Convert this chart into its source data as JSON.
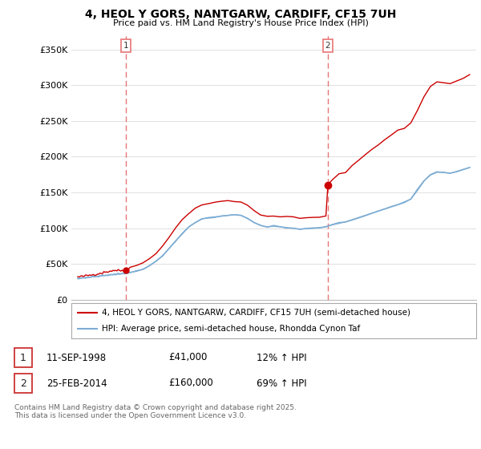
{
  "title": "4, HEOL Y GORS, NANTGARW, CARDIFF, CF15 7UH",
  "subtitle": "Price paid vs. HM Land Registry's House Price Index (HPI)",
  "legend_line1": "4, HEOL Y GORS, NANTGARW, CARDIFF, CF15 7UH (semi-detached house)",
  "legend_line2": "HPI: Average price, semi-detached house, Rhondda Cynon Taf",
  "footer": "Contains HM Land Registry data © Crown copyright and database right 2025.\nThis data is licensed under the Open Government Licence v3.0.",
  "sale1_date": "11-SEP-1998",
  "sale1_price": "£41,000",
  "sale1_hpi": "12% ↑ HPI",
  "sale2_date": "25-FEB-2014",
  "sale2_price": "£160,000",
  "sale2_hpi": "69% ↑ HPI",
  "price_line_color": "#cc0000",
  "hpi_line_color": "#7dadd4",
  "vline_color": "#e87575",
  "sale1_vline_x": 1998.7,
  "sale2_vline_x": 2014.15,
  "sale1_dot_price": 41000,
  "sale2_dot_price": 160000,
  "ylim": [
    0,
    370000
  ],
  "xlim": [
    1994.5,
    2025.5
  ],
  "yticks": [
    0,
    50000,
    100000,
    150000,
    200000,
    250000,
    300000,
    350000
  ],
  "ytick_labels": [
    "£0",
    "£50K",
    "£100K",
    "£150K",
    "£200K",
    "£250K",
    "£300K",
    "£350K"
  ],
  "background_color": "#ffffff",
  "grid_color": "#e0e0e0",
  "years_hpi": [
    1995.0,
    1995.1,
    1995.2,
    1995.3,
    1995.4,
    1995.5,
    1995.6,
    1995.7,
    1995.8,
    1995.9,
    1996.0,
    1996.1,
    1996.2,
    1996.3,
    1996.4,
    1996.5,
    1996.6,
    1996.7,
    1996.8,
    1996.9,
    1997.0,
    1997.1,
    1997.2,
    1997.3,
    1997.4,
    1997.5,
    1997.6,
    1997.7,
    1997.8,
    1997.9,
    1998.0,
    1998.1,
    1998.2,
    1998.3,
    1998.4,
    1998.5,
    1998.6,
    1998.7,
    1998.8,
    1998.9,
    1999.0,
    1999.5,
    2000.0,
    2000.5,
    2001.0,
    2001.5,
    2002.0,
    2002.5,
    2003.0,
    2003.5,
    2004.0,
    2004.5,
    2005.0,
    2005.5,
    2006.0,
    2006.5,
    2007.0,
    2007.5,
    2008.0,
    2008.5,
    2009.0,
    2009.5,
    2010.0,
    2010.5,
    2011.0,
    2011.5,
    2012.0,
    2012.5,
    2013.0,
    2013.5,
    2014.0,
    2014.15,
    2014.5,
    2015.0,
    2015.5,
    2016.0,
    2016.5,
    2017.0,
    2017.5,
    2018.0,
    2018.5,
    2019.0,
    2019.5,
    2020.0,
    2020.5,
    2021.0,
    2021.5,
    2022.0,
    2022.5,
    2023.0,
    2023.5,
    2024.0,
    2024.5,
    2025.0
  ],
  "hpi_values": [
    30000,
    30200,
    30400,
    30600,
    30800,
    31000,
    31200,
    31400,
    31600,
    31800,
    32000,
    32200,
    32400,
    32600,
    32800,
    33000,
    33200,
    33400,
    33600,
    33800,
    34000,
    34200,
    34400,
    34600,
    34800,
    35000,
    35200,
    35400,
    35600,
    35800,
    36000,
    36200,
    36400,
    36600,
    36800,
    37000,
    37200,
    37400,
    37600,
    37800,
    38500,
    40000,
    43000,
    48000,
    54000,
    62000,
    72000,
    82000,
    93000,
    102000,
    108000,
    113000,
    115000,
    116000,
    117000,
    118000,
    119000,
    118000,
    114000,
    108000,
    104000,
    102000,
    103000,
    102000,
    101000,
    100000,
    99000,
    99500,
    100000,
    101000,
    102000,
    103000,
    105000,
    107000,
    109000,
    112000,
    115000,
    118000,
    121000,
    124000,
    127000,
    130000,
    133000,
    136000,
    141000,
    153000,
    166000,
    175000,
    179000,
    178000,
    177000,
    179000,
    182000,
    185000
  ],
  "price_values": [
    32000,
    32200,
    32500,
    32700,
    33000,
    33300,
    33600,
    33900,
    34200,
    34500,
    34800,
    35100,
    35400,
    35700,
    36000,
    36400,
    36800,
    37200,
    37600,
    38000,
    38400,
    38800,
    39200,
    39600,
    40000,
    40400,
    40700,
    41000,
    41300,
    41600,
    41000,
    41100,
    41200,
    41100,
    41000,
    41000,
    41000,
    41000,
    42000,
    43000,
    45000,
    48000,
    52000,
    58000,
    66000,
    76000,
    88000,
    100000,
    112000,
    122000,
    128000,
    133000,
    135000,
    136000,
    137000,
    138000,
    138000,
    137000,
    132000,
    124000,
    119000,
    117000,
    118000,
    117000,
    116000,
    115000,
    114000,
    114000,
    115000,
    116000,
    117000,
    160000,
    168000,
    175000,
    180000,
    187000,
    195000,
    203000,
    210000,
    218000,
    224000,
    230000,
    236000,
    240000,
    248000,
    265000,
    283000,
    298000,
    305000,
    303000,
    302000,
    305000,
    310000,
    315000
  ]
}
